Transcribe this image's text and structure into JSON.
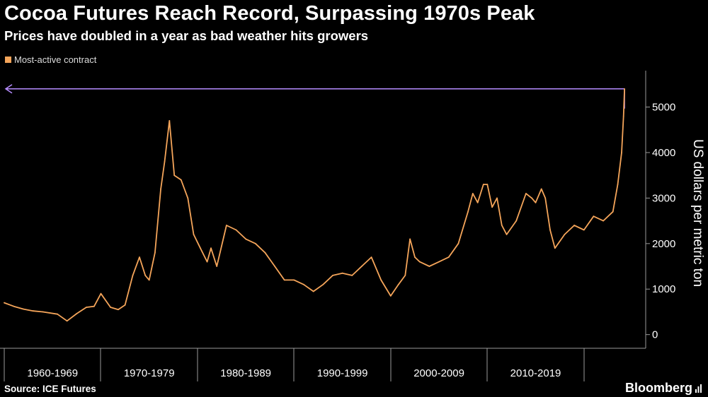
{
  "header": {
    "title": "Cocoa Futures Reach Record, Surpassing 1970s Peak",
    "subtitle": "Prices have doubled in a year as bad weather hits growers"
  },
  "footer": {
    "source": "Source: ICE Futures",
    "brand": "Bloomberg"
  },
  "colors": {
    "background": "#000000",
    "series": "#f5a55a",
    "record_line": "#b68cff",
    "axis": "#9a9a9a"
  },
  "chart_data": {
    "type": "line",
    "title": "Cocoa Futures Reach Record, Surpassing 1970s Peak",
    "subtitle": "Prices have doubled in a year as bad weather hits growers",
    "ylabel": "US dollars per metric ton",
    "xlabel": "",
    "y_axis_side": "right",
    "ylim": [
      -300,
      5800
    ],
    "xlim": [
      1960.0,
      2025.0
    ],
    "yticks": [
      0,
      1000,
      2000,
      3000,
      4000,
      5000
    ],
    "x_category_labels": [
      "1960-1969",
      "1970-1979",
      "1980-1989",
      "1990-1999",
      "2000-2009",
      "2010-2019"
    ],
    "x_category_boundaries": [
      1960,
      1970,
      1980,
      1990,
      2000,
      2010,
      2020
    ],
    "grid": false,
    "legend_position": "top-left",
    "annotations": [
      {
        "type": "horizontal-arrow",
        "value": 5400,
        "from_x": 2024.2,
        "to_x": 1960.0,
        "description": "record level reached"
      }
    ],
    "series": [
      {
        "name": "Most-active contract",
        "x": [
          1960.0,
          1961.0,
          1962.0,
          1963.0,
          1964.0,
          1965.5,
          1966.5,
          1967.5,
          1968.5,
          1969.3,
          1970.0,
          1971.0,
          1971.8,
          1972.5,
          1973.3,
          1974.0,
          1974.6,
          1975.0,
          1975.6,
          1976.2,
          1976.6,
          1977.1,
          1977.6,
          1978.3,
          1979.0,
          1979.6,
          1980.3,
          1981.0,
          1981.4,
          1982.0,
          1983.0,
          1984.0,
          1985.0,
          1986.0,
          1987.0,
          1988.0,
          1989.0,
          1990.0,
          1991.0,
          1992.0,
          1993.0,
          1994.0,
          1995.0,
          1996.0,
          1997.0,
          1998.0,
          1999.0,
          2000.0,
          2000.8,
          2001.5,
          2002.0,
          2002.5,
          2003.0,
          2004.0,
          2005.0,
          2006.0,
          2007.0,
          2008.0,
          2008.5,
          2009.0,
          2009.6,
          2010.0,
          2010.5,
          2011.0,
          2011.5,
          2012.0,
          2013.0,
          2014.0,
          2014.6,
          2015.0,
          2015.6,
          2016.0,
          2016.5,
          2017.0,
          2018.0,
          2019.0,
          2020.0,
          2021.0,
          2022.0,
          2023.0,
          2023.5,
          2023.9,
          2024.1,
          2024.2
        ],
        "y": [
          700,
          620,
          560,
          520,
          500,
          450,
          300,
          460,
          600,
          620,
          900,
          600,
          550,
          650,
          1300,
          1700,
          1300,
          1200,
          1800,
          3200,
          3800,
          4700,
          3500,
          3400,
          3000,
          2200,
          1900,
          1600,
          1900,
          1500,
          2400,
          2300,
          2100,
          2000,
          1800,
          1500,
          1200,
          1200,
          1100,
          950,
          1100,
          1300,
          1350,
          1300,
          1500,
          1700,
          1200,
          850,
          1100,
          1300,
          2100,
          1700,
          1600,
          1500,
          1600,
          1700,
          2000,
          2700,
          3100,
          2900,
          3300,
          3300,
          2800,
          3000,
          2400,
          2200,
          2500,
          3100,
          3000,
          2900,
          3200,
          3000,
          2300,
          1900,
          2200,
          2400,
          2300,
          2600,
          2500,
          2700,
          3300,
          4000,
          4800,
          5400
        ]
      }
    ]
  }
}
